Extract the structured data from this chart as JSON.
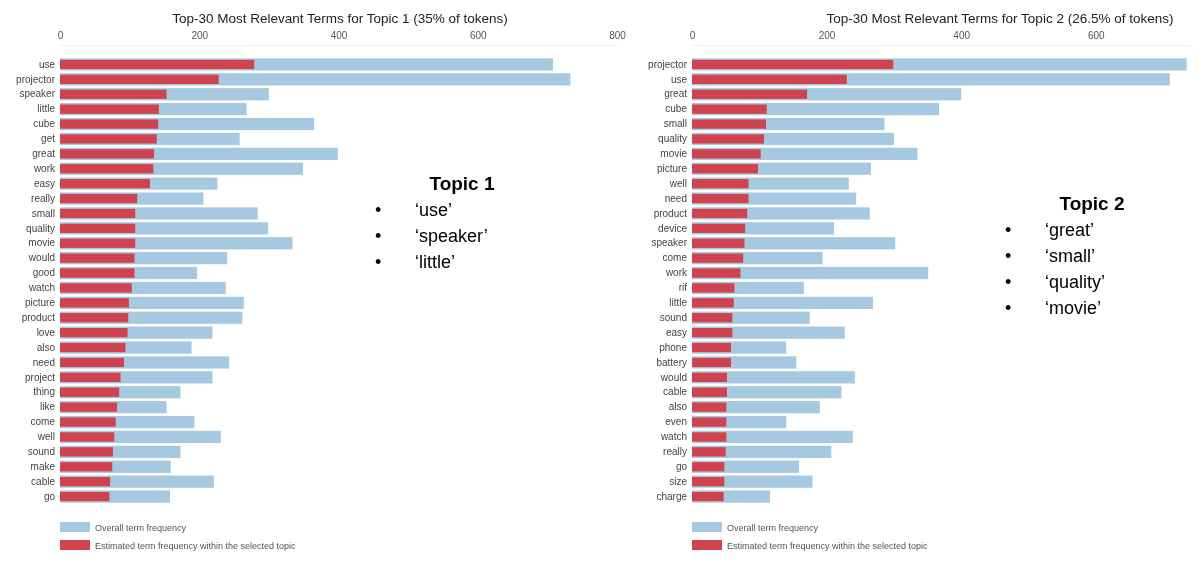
{
  "chart_data": [
    {
      "type": "bar",
      "orientation": "horizontal",
      "title": "Top-30 Most Relevant Terms for Topic 1 (35% of tokens)",
      "categories": [
        "use",
        "projector",
        "speaker",
        "little",
        "cube",
        "get",
        "great",
        "work",
        "easy",
        "really",
        "small",
        "quality",
        "movie",
        "would",
        "good",
        "watch",
        "picture",
        "product",
        "love",
        "also",
        "need",
        "project",
        "thing",
        "like",
        "come",
        "well",
        "sound",
        "make",
        "cable",
        "go"
      ],
      "series": [
        {
          "name": "Overall term frequency",
          "color": "#a6c8e1",
          "values": [
            708,
            733,
            300,
            268,
            365,
            258,
            399,
            349,
            226,
            206,
            284,
            299,
            334,
            240,
            197,
            238,
            264,
            262,
            219,
            189,
            243,
            219,
            173,
            153,
            193,
            231,
            173,
            159,
            221,
            158
          ]
        },
        {
          "name": "Estimated term frequency within the selected topic",
          "color": "#cf434e",
          "values": [
            279,
            228,
            153,
            142,
            141,
            139,
            135,
            134,
            129,
            111,
            108,
            108,
            108,
            107,
            107,
            103,
            99,
            98,
            97,
            94,
            92,
            87,
            85,
            82,
            80,
            78,
            76,
            75,
            72,
            71
          ]
        }
      ],
      "xlim": [
        0,
        800
      ],
      "xticks": [
        0,
        200,
        400,
        600,
        800
      ],
      "legend": "bottom",
      "annotations": [
        "Topic 1",
        "• ‘use’",
        "• ‘speaker’",
        "• ‘little’"
      ]
    },
    {
      "type": "bar",
      "orientation": "horizontal",
      "title": "Top-30 Most Relevant Terms for Topic 2 (26.5% of tokens)",
      "categories": [
        "projector",
        "use",
        "great",
        "cube",
        "small",
        "quality",
        "movie",
        "picture",
        "well",
        "need",
        "product",
        "device",
        "speaker",
        "come",
        "work",
        "rif",
        "little",
        "sound",
        "easy",
        "phone",
        "battery",
        "would",
        "cable",
        "also",
        "even",
        "watch",
        "really",
        "go",
        "size",
        "charge"
      ],
      "series": [
        {
          "name": "Overall term frequency",
          "color": "#a6c8e1",
          "values": [
            735,
            710,
            400,
            367,
            286,
            300,
            335,
            266,
            233,
            244,
            264,
            211,
            302,
            194,
            351,
            166,
            269,
            175,
            227,
            140,
            155,
            242,
            222,
            190,
            140,
            239,
            207,
            159,
            179,
            116
          ]
        },
        {
          "name": "Estimated term frequency within the selected topic",
          "color": "#cf434e",
          "values": [
            299,
            230,
            171,
            111,
            110,
            107,
            102,
            98,
            84,
            84,
            82,
            79,
            78,
            76,
            72,
            63,
            62,
            60,
            60,
            58,
            58,
            52,
            52,
            51,
            51,
            51,
            50,
            48,
            48,
            47
          ]
        }
      ],
      "xlim": [
        0,
        740
      ],
      "xticks": [
        0,
        200,
        400,
        600
      ],
      "legend": "bottom",
      "annotations": [
        "Topic 2",
        "• ‘great’",
        "• ‘small’",
        "• ‘quality’",
        "• ‘movie’"
      ]
    }
  ]
}
